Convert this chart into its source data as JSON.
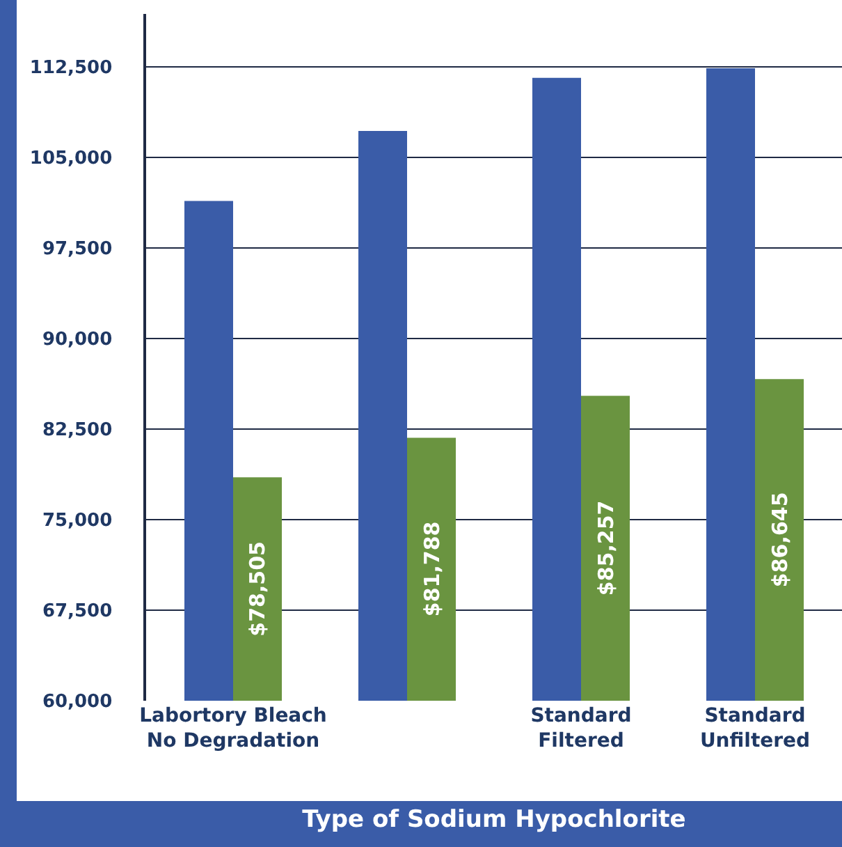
{
  "chart_data": {
    "type": "bar",
    "xlabel": "Type of Sodium Hypochlorite",
    "categories": [
      "Labortory Bleach No Degradation",
      null,
      "Standard Filtered",
      "Standard Unfiltered"
    ],
    "series": [
      {
        "color": "#3a5ca8",
        "values": [
          101400,
          107200,
          111600,
          112400
        ]
      },
      {
        "color": "#6a9440",
        "values": [
          78505,
          81788,
          85257,
          86645
        ],
        "value_labels": [
          "$78,505",
          "$81,788",
          "$85,257",
          "$86,645"
        ]
      }
    ],
    "ylim": [
      60000,
      116900
    ],
    "yticks": [
      {
        "value": 60000,
        "label": "60,000"
      },
      {
        "value": 67500,
        "label": "67,500"
      },
      {
        "value": 75000,
        "label": "75,000"
      },
      {
        "value": 82500,
        "label": "82,500"
      },
      {
        "value": 90000,
        "label": "90,000"
      },
      {
        "value": 97500,
        "label": "97,500"
      },
      {
        "value": 105000,
        "label": "105,000"
      },
      {
        "value": 112500,
        "label": "112,500"
      }
    ],
    "grid": "y"
  }
}
